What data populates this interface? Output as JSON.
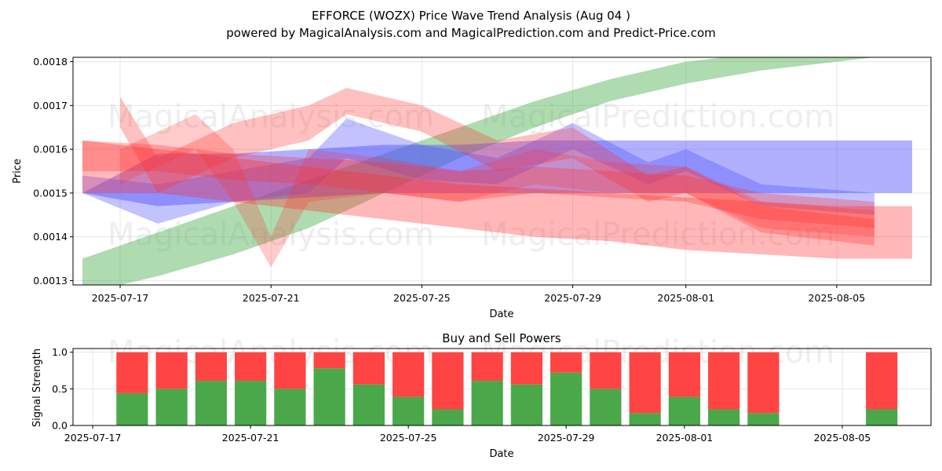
{
  "header": {
    "title": "EFFORCE (WOZX) Price Wave Trend Analysis (Aug 04 )",
    "subtitle": "powered by MagicalAnalysis.com and MagicalPrediction.com and Predict-Price.com"
  },
  "watermarks": {
    "left": "MagicalAnalysis.com",
    "right": "MagicalPrediction.com"
  },
  "colors": {
    "green": "#4aa84a",
    "red": "#ff4444",
    "blue": "#6666ff",
    "band_green": "#4caf50",
    "band_red": "#ff3030",
    "band_blue": "#5050ff"
  },
  "chart_data": [
    {
      "type": "area",
      "title": "",
      "xlabel": "Date",
      "ylabel": "Price",
      "ylim": [
        0.00129,
        0.00181
      ],
      "xlim": [
        "2025-07-15T18:00",
        "2025-08-07T12:00"
      ],
      "grid": true,
      "x_ticks": [
        "2025-07-17",
        "2025-07-21",
        "2025-07-25",
        "2025-07-29",
        "2025-08-01",
        "2025-08-05"
      ],
      "y_ticks": [
        "0.0013",
        "0.0014",
        "0.0015",
        "0.0016",
        "0.0017",
        "0.0018"
      ],
      "series": [
        {
          "color": "green",
          "opacity": 0.45,
          "x": [
            "2025-07-16",
            "2025-07-18",
            "2025-07-20",
            "2025-07-22",
            "2025-07-24",
            "2025-07-26",
            "2025-07-28",
            "2025-07-30",
            "2025-08-01",
            "2025-08-03",
            "2025-08-05",
            "2025-08-07"
          ],
          "lower": [
            0.00127,
            0.00131,
            0.00136,
            0.00142,
            0.0015,
            0.00158,
            0.00165,
            0.00171,
            0.00175,
            0.00178,
            0.0018,
            0.00182
          ],
          "upper": [
            0.00135,
            0.00141,
            0.00147,
            0.00153,
            0.00159,
            0.00165,
            0.00171,
            0.00176,
            0.0018,
            0.00182,
            0.00183,
            0.00184
          ]
        },
        {
          "color": "blue",
          "opacity": 0.45,
          "x": [
            "2025-07-16",
            "2025-07-18",
            "2025-07-20",
            "2025-07-22",
            "2025-07-24",
            "2025-07-26",
            "2025-07-28",
            "2025-07-30",
            "2025-08-01",
            "2025-08-03",
            "2025-08-05",
            "2025-08-07"
          ],
          "lower": [
            0.0015,
            0.00147,
            0.00148,
            0.00149,
            0.0015,
            0.0015,
            0.0015,
            0.0015,
            0.0015,
            0.0015,
            0.0015,
            0.0015
          ],
          "upper": [
            0.0015,
            0.00159,
            0.00159,
            0.0016,
            0.00161,
            0.00161,
            0.00162,
            0.00162,
            0.00162,
            0.00162,
            0.00162,
            0.00162
          ]
        },
        {
          "color": "blue",
          "opacity": 0.35,
          "x": [
            "2025-07-16",
            "2025-07-18",
            "2025-07-20",
            "2025-07-22",
            "2025-07-23",
            "2025-07-25",
            "2025-07-27",
            "2025-07-29",
            "2025-07-31",
            "2025-08-01",
            "2025-08-03",
            "2025-08-06"
          ],
          "lower": [
            0.0015,
            0.00143,
            0.00148,
            0.0015,
            0.00158,
            0.00153,
            0.00152,
            0.0016,
            0.00152,
            0.00155,
            0.00147,
            0.00145
          ],
          "upper": [
            0.00154,
            0.00152,
            0.00155,
            0.00158,
            0.00167,
            0.00161,
            0.00158,
            0.00166,
            0.00157,
            0.0016,
            0.00152,
            0.0015
          ]
        },
        {
          "color": "red",
          "opacity": 0.35,
          "x": [
            "2025-07-16",
            "2025-07-18",
            "2025-07-20",
            "2025-07-22",
            "2025-07-24",
            "2025-07-26",
            "2025-07-28",
            "2025-07-30",
            "2025-08-01",
            "2025-08-03",
            "2025-08-05",
            "2025-08-07"
          ],
          "lower": [
            0.0015,
            0.0015,
            0.00148,
            0.00146,
            0.00144,
            0.00142,
            0.0014,
            0.00139,
            0.00137,
            0.00136,
            0.00135,
            0.00135
          ],
          "upper": [
            0.00162,
            0.0016,
            0.00158,
            0.00156,
            0.00154,
            0.00152,
            0.00151,
            0.0015,
            0.00149,
            0.00148,
            0.00147,
            0.00147
          ]
        },
        {
          "color": "red",
          "opacity": 0.3,
          "x": [
            "2025-07-17",
            "2025-07-18",
            "2025-07-20",
            "2025-07-22",
            "2025-07-23",
            "2025-07-25",
            "2025-07-27",
            "2025-07-29",
            "2025-07-31",
            "2025-08-01",
            "2025-08-03",
            "2025-08-06"
          ],
          "lower": [
            0.00165,
            0.0015,
            0.00158,
            0.00162,
            0.00168,
            0.00164,
            0.00155,
            0.00158,
            0.00148,
            0.0015,
            0.00141,
            0.00138
          ],
          "upper": [
            0.00172,
            0.00158,
            0.00166,
            0.0017,
            0.00174,
            0.0017,
            0.00162,
            0.00165,
            0.00154,
            0.00156,
            0.00147,
            0.00144
          ]
        },
        {
          "color": "red",
          "opacity": 0.25,
          "x": [
            "2025-07-17",
            "2025-07-19",
            "2025-07-20",
            "2025-07-21",
            "2025-07-22",
            "2025-07-24",
            "2025-07-26",
            "2025-07-28",
            "2025-07-30",
            "2025-08-01",
            "2025-08-03",
            "2025-08-06"
          ],
          "lower": [
            0.00152,
            0.0016,
            0.00148,
            0.00133,
            0.00148,
            0.0015,
            0.00148,
            0.00152,
            0.0015,
            0.0015,
            0.00142,
            0.0014
          ],
          "upper": [
            0.0016,
            0.00168,
            0.0016,
            0.0014,
            0.0016,
            0.00158,
            0.00155,
            0.0016,
            0.00157,
            0.00156,
            0.00148,
            0.00146
          ]
        },
        {
          "color": "red",
          "opacity": 0.3,
          "x": [
            "2025-07-16",
            "2025-07-18",
            "2025-07-20",
            "2025-07-22",
            "2025-07-24",
            "2025-07-26",
            "2025-07-28",
            "2025-07-30",
            "2025-08-01",
            "2025-08-03",
            "2025-08-06"
          ],
          "lower": [
            0.00155,
            0.00155,
            0.00153,
            0.00152,
            0.0015,
            0.00148,
            0.0015,
            0.00149,
            0.00148,
            0.00144,
            0.00142
          ],
          "upper": [
            0.00162,
            0.00161,
            0.00159,
            0.00158,
            0.00157,
            0.00155,
            0.00156,
            0.00155,
            0.00154,
            0.0015,
            0.00148
          ]
        }
      ]
    },
    {
      "type": "bar",
      "title": "Buy and Sell Powers",
      "xlabel": "Date",
      "ylabel": "Signal Strength",
      "ylim": [
        0,
        1.05
      ],
      "xlim": [
        "2025-07-16T12:00",
        "2025-08-07T06:00"
      ],
      "grid": true,
      "x_ticks": [
        "2025-07-17",
        "2025-07-21",
        "2025-07-25",
        "2025-07-29",
        "2025-08-01",
        "2025-08-05"
      ],
      "y_ticks": [
        "0.0",
        "0.5",
        "1.0"
      ],
      "categories": [
        "2025-07-18",
        "2025-07-19",
        "2025-07-20",
        "2025-07-21",
        "2025-07-22",
        "2025-07-23",
        "2025-07-24",
        "2025-07-25",
        "2025-07-26",
        "2025-07-27",
        "2025-07-28",
        "2025-07-29",
        "2025-07-30",
        "2025-07-31",
        "2025-08-01",
        "2025-08-02",
        "2025-08-03",
        "2025-08-06"
      ],
      "series": [
        {
          "name": "Buy",
          "color": "green",
          "values": [
            0.44,
            0.5,
            0.61,
            0.61,
            0.5,
            0.78,
            0.56,
            0.39,
            0.22,
            0.61,
            0.56,
            0.72,
            0.5,
            0.17,
            0.39,
            0.22,
            0.17,
            0.22
          ]
        },
        {
          "name": "Sell",
          "color": "red",
          "values": [
            0.56,
            0.5,
            0.39,
            0.39,
            0.5,
            0.22,
            0.44,
            0.61,
            0.78,
            0.39,
            0.44,
            0.28,
            0.5,
            0.83,
            0.61,
            0.78,
            0.83,
            0.78
          ]
        }
      ]
    }
  ]
}
